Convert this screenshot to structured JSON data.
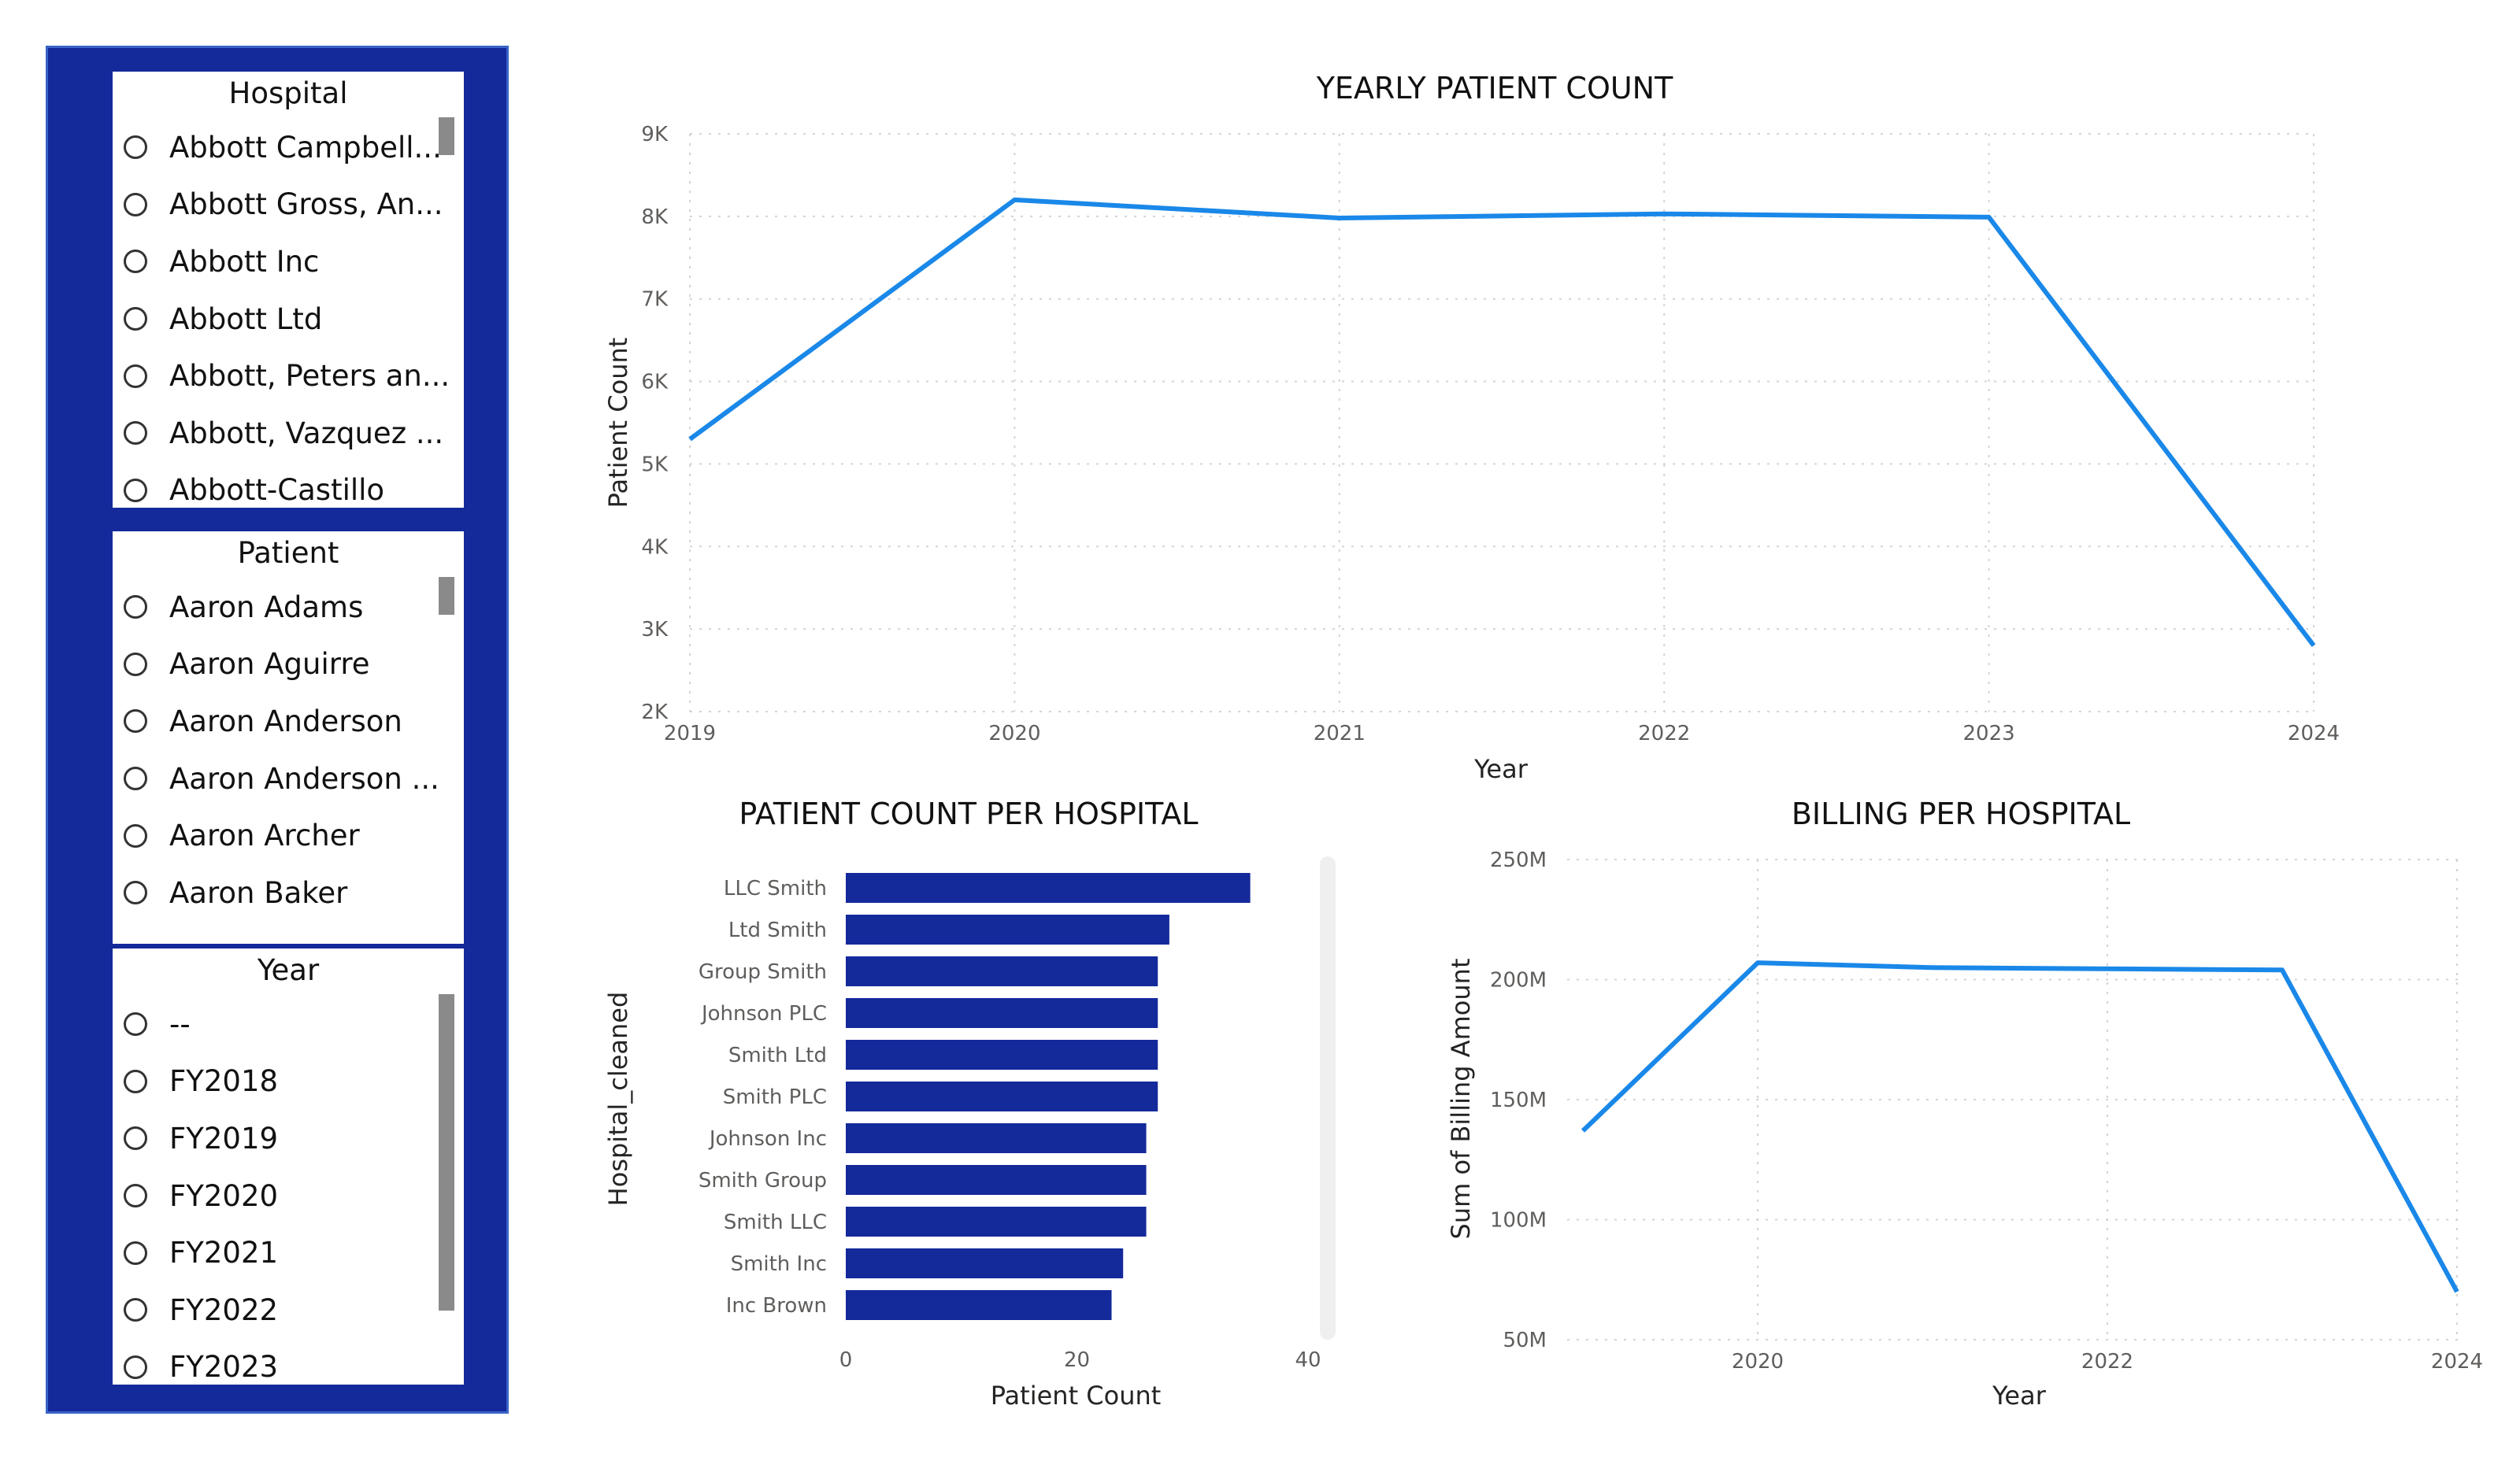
{
  "slicers": {
    "hospital": {
      "title": "Hospital",
      "items": [
        "Abbott Campbell...",
        "Abbott Gross, An...",
        "Abbott Inc",
        "Abbott Ltd",
        "Abbott, Peters an...",
        "Abbott, Vazquez ...",
        "Abbott-Castillo"
      ]
    },
    "patient": {
      "title": "Patient",
      "items": [
        "Aaron Adams",
        "Aaron Aguirre",
        "Aaron Anderson",
        "Aaron Anderson ...",
        "Aaron Archer",
        "Aaron Baker"
      ]
    },
    "year": {
      "title": "Year",
      "items": [
        "--",
        "FY2018",
        "FY2019",
        "FY2020",
        "FY2021",
        "FY2022",
        "FY2023"
      ]
    }
  },
  "colors": {
    "panel": "#14299a",
    "line": "#1a88e8",
    "bar": "#14299a"
  },
  "chart_data": [
    {
      "type": "line",
      "title": "YEARLY PATIENT COUNT",
      "xlabel": "Year",
      "ylabel": "Patient Count",
      "x": [
        "2019",
        "2020",
        "2021",
        "2022",
        "2023",
        "2024"
      ],
      "values": [
        5300,
        8200,
        7980,
        8030,
        7990,
        2800
      ],
      "ylim": [
        2000,
        9000
      ],
      "yticks": [
        "2K",
        "3K",
        "4K",
        "5K",
        "6K",
        "7K",
        "8K",
        "9K"
      ],
      "grid": true
    },
    {
      "type": "bar",
      "orientation": "horizontal",
      "title": "PATIENT COUNT PER HOSPITAL",
      "xlabel": "Patient Count",
      "ylabel": "Hospital_cleaned",
      "categories": [
        "LLC Smith",
        "Ltd Smith",
        "Group Smith",
        "Johnson PLC",
        "Smith Ltd",
        "Smith PLC",
        "Johnson Inc",
        "Smith Group",
        "Smith LLC",
        "Smith Inc",
        "Inc Brown"
      ],
      "values": [
        35,
        28,
        27,
        27,
        27,
        27,
        26,
        26,
        26,
        24,
        23
      ],
      "xlim": [
        0,
        40
      ],
      "xticks": [
        "0",
        "20",
        "40"
      ]
    },
    {
      "type": "line",
      "title": "BILLING PER HOSPITAL",
      "xlabel": "Year",
      "ylabel": "Sum of Billing Amount",
      "x": [
        2019,
        2020,
        2021,
        2022,
        2023,
        2024
      ],
      "values": [
        137,
        207,
        205,
        204.5,
        204,
        70
      ],
      "xlim": [
        2019,
        2024
      ],
      "xtick_values": [
        2020,
        2022,
        2024
      ],
      "xticks": [
        "2020",
        "2022",
        "2024"
      ],
      "ylim": [
        50,
        250
      ],
      "ytick_values": [
        50,
        100,
        150,
        200,
        250
      ],
      "yticks": [
        "50M",
        "100M",
        "150M",
        "200M",
        "250M"
      ],
      "grid": true
    }
  ]
}
